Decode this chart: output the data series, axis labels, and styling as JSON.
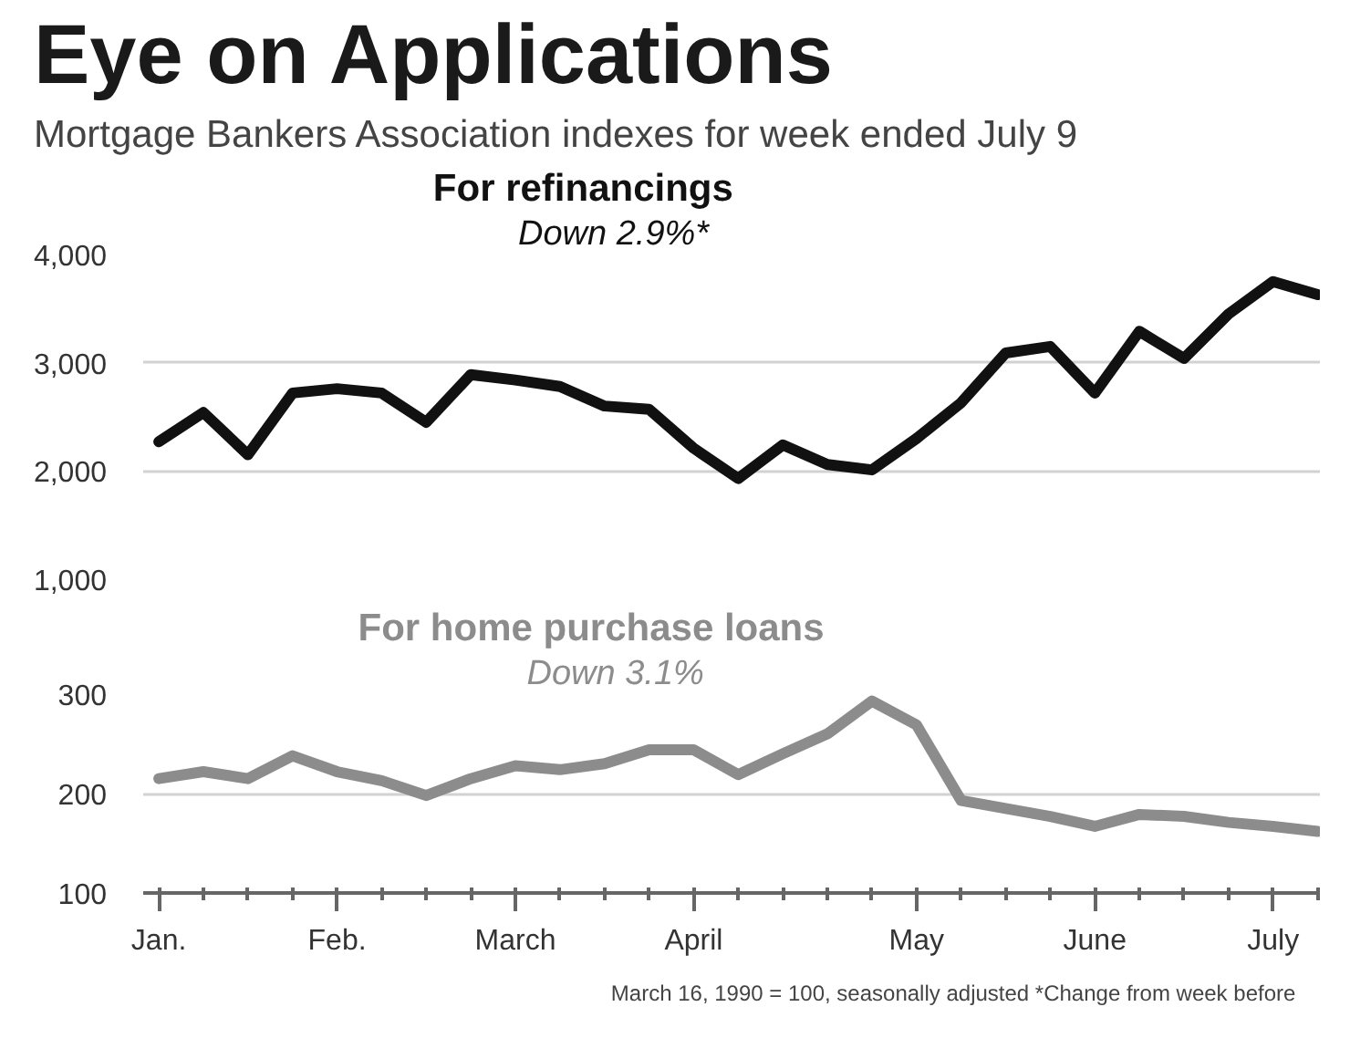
{
  "chart_data": [
    {
      "type": "line",
      "title": "Eye on Applications",
      "subtitle": "Mortgage Bankers Association indexes for week ended July 9",
      "categories": [
        null,
        null,
        null,
        null,
        null,
        null,
        null,
        null,
        null,
        null,
        null,
        null,
        null,
        null,
        null,
        null,
        null,
        null,
        null,
        null,
        null,
        null,
        null,
        null,
        null,
        null,
        null
      ],
      "series": [
        {
          "name": "For refinancings",
          "color": "#111111",
          "values": [
            2270,
            2540,
            2150,
            2720,
            2760,
            2720,
            2450,
            2890,
            2840,
            2780,
            2600,
            2570,
            2210,
            1930,
            2240,
            2060,
            2010,
            2300,
            2630,
            3090,
            3150,
            2720,
            3290,
            3040,
            3450,
            3750,
            3630
          ]
        }
      ],
      "annotations": [
        "Down 2.9%*"
      ],
      "ylim": [
        1000,
        4000
      ],
      "yticks": [
        {
          "value": 1000,
          "label": "1,000"
        },
        {
          "value": 2000,
          "label": "2,000"
        },
        {
          "value": 3000,
          "label": "3,000"
        },
        {
          "value": 4000,
          "label": "4,000"
        }
      ],
      "grid": "y",
      "tick_labels": "y"
    },
    {
      "type": "line",
      "categories": [
        "Jan.",
        null,
        null,
        null,
        "Feb.",
        null,
        null,
        null,
        "March",
        null,
        null,
        null,
        "April",
        null,
        null,
        null,
        null,
        "May",
        null,
        null,
        null,
        "June",
        null,
        null,
        null,
        "July",
        null
      ],
      "series": [
        {
          "name": "For home purchase loans",
          "color": "#8c8c8c",
          "values": [
            215,
            222,
            215,
            238,
            222,
            213,
            198,
            215,
            228,
            224,
            230,
            244,
            244,
            219,
            240,
            260,
            293,
            269,
            193,
            185,
            177,
            167,
            179,
            177,
            171,
            167,
            162
          ]
        }
      ],
      "annotations": [
        "Down 3.1%",
        "March 16, 1990 = 100, seasonally adjusted",
        "*Change from week before"
      ],
      "ylim": [
        100,
        300
      ],
      "yticks": [
        100,
        200,
        300
      ],
      "grid": "y"
    }
  ]
}
